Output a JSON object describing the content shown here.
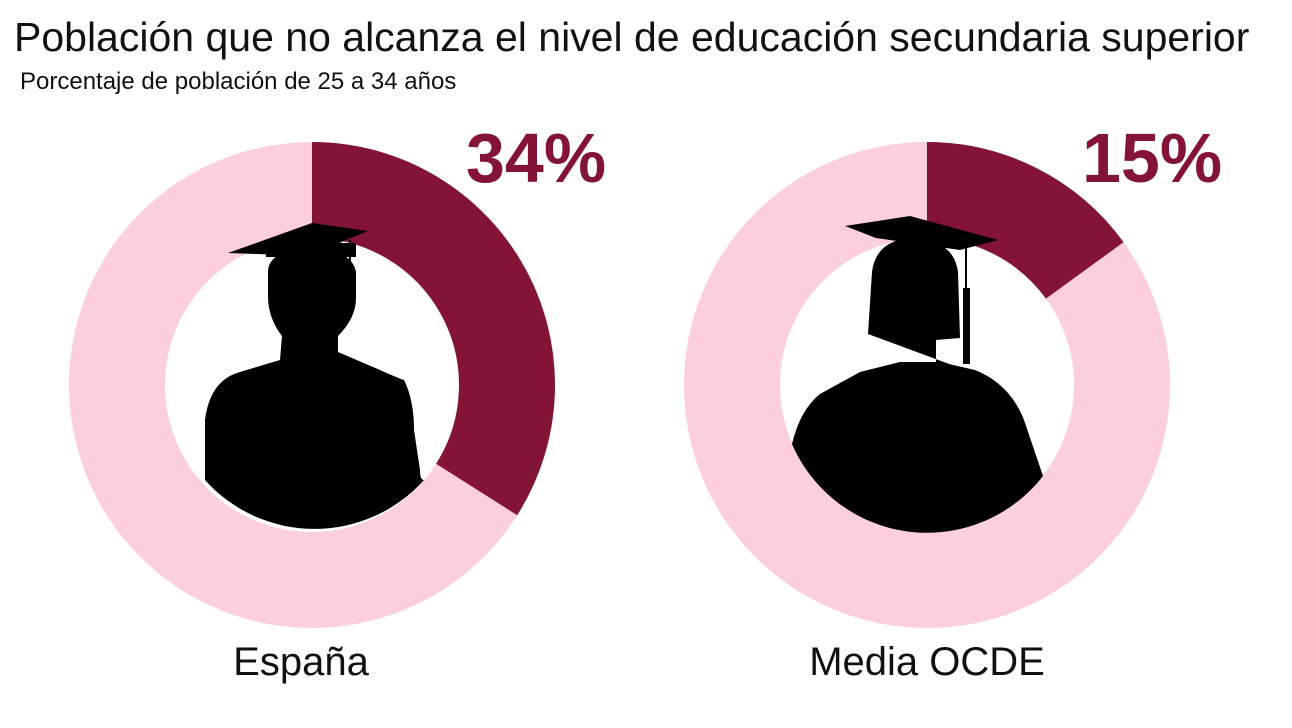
{
  "title": "Población que no alcanza el nivel de educación secundaria superior",
  "subtitle": "Porcentaje de población de 25 a 34 años",
  "colors": {
    "accent": "#841436",
    "remainder": "#fccfdf",
    "silhouette": "#000000"
  },
  "chart_data": {
    "type": "pie",
    "title": "Población que no alcanza el nivel de educación secundaria superior",
    "subtitle": "Porcentaje de población de 25 a 34 años",
    "categories": [
      "España",
      "Media OCDE"
    ],
    "values": [
      34,
      15
    ],
    "value_labels": [
      "34%",
      "15%"
    ],
    "unit": "%",
    "icons": [
      "male-graduate-silhouette-icon",
      "female-graduate-silhouette-icon"
    ]
  }
}
